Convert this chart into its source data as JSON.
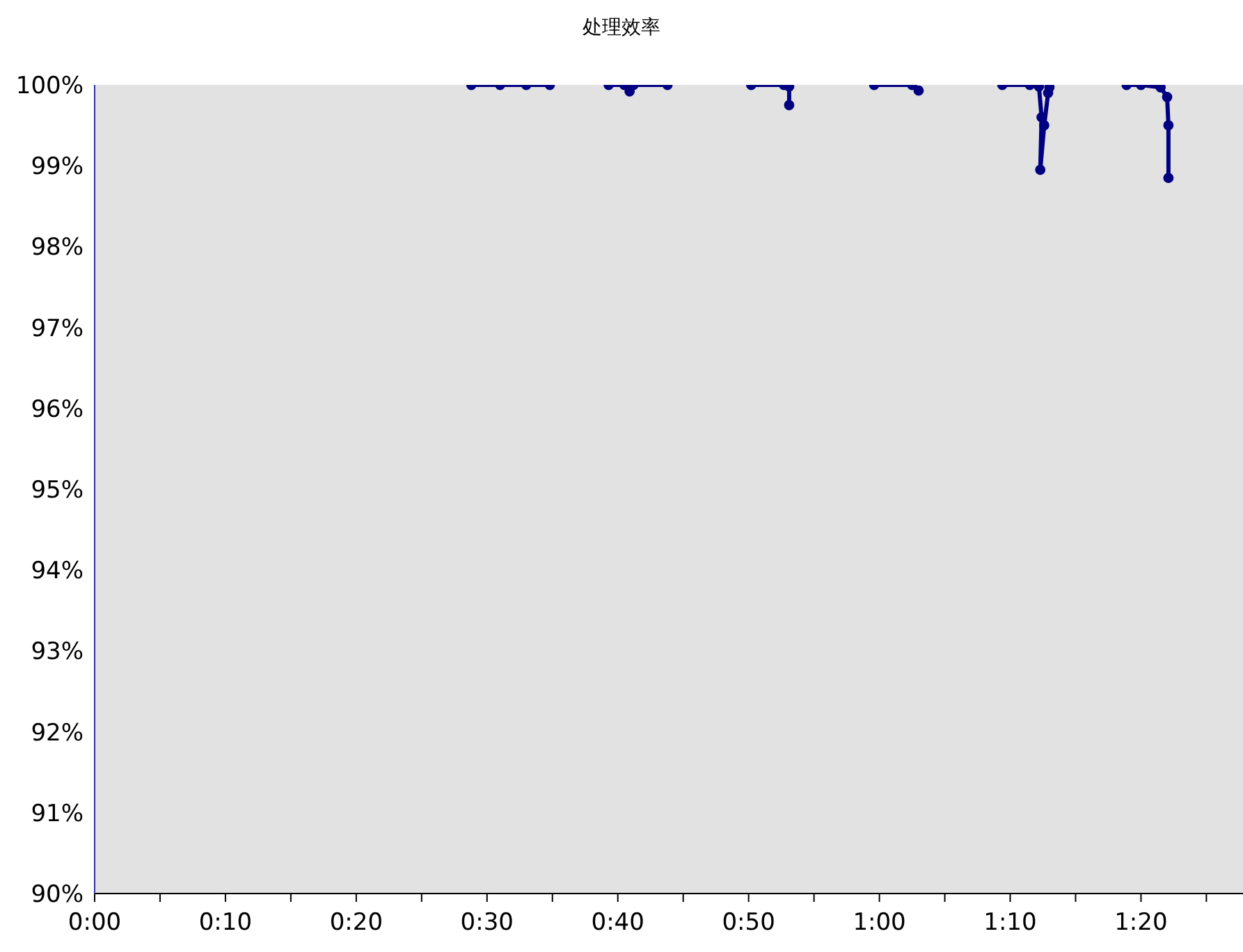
{
  "chart_data": {
    "type": "line",
    "title": "处理效率",
    "x": [
      28.8,
      31,
      33,
      34.8,
      37,
      39.3,
      40.5,
      40.9,
      41.2,
      43.8,
      47,
      50.2,
      52.7,
      53.1,
      53.1,
      56,
      59.6,
      62.5,
      63.0,
      66,
      69.4,
      71.5,
      72.2,
      72.4,
      72.3,
      72.6,
      72.9,
      73.0,
      76,
      78.9,
      80,
      81.5,
      82.0,
      82.1,
      82.1
    ],
    "series": [
      {
        "color": "#000080",
        "values": [
          100,
          100,
          100,
          100,
          null,
          100,
          100,
          99.92,
          100,
          100,
          null,
          100,
          100,
          99.98,
          99.75,
          null,
          100,
          100,
          99.93,
          null,
          100,
          100,
          99.98,
          99.6,
          98.95,
          99.5,
          99.9,
          99.97,
          null,
          100,
          100,
          99.97,
          99.85,
          99.5,
          98.85
        ]
      }
    ],
    "xlim": [
      0,
      87.8
    ],
    "xticks": [
      {
        "value": 0,
        "label": "0:00"
      },
      {
        "value": 5,
        "label": null
      },
      {
        "value": 10,
        "label": "0:10"
      },
      {
        "value": 15,
        "label": null
      },
      {
        "value": 20,
        "label": "0:20"
      },
      {
        "value": 25,
        "label": null
      },
      {
        "value": 30,
        "label": "0:30"
      },
      {
        "value": 35,
        "label": null
      },
      {
        "value": 40,
        "label": "0:40"
      },
      {
        "value": 45,
        "label": null
      },
      {
        "value": 50,
        "label": "0:50"
      },
      {
        "value": 55,
        "label": null
      },
      {
        "value": 60,
        "label": "1:00"
      },
      {
        "value": 65,
        "label": null
      },
      {
        "value": 70,
        "label": "1:10"
      },
      {
        "value": 75,
        "label": null
      },
      {
        "value": 80,
        "label": "1:20"
      },
      {
        "value": 85,
        "label": null
      }
    ],
    "ylim": [
      90,
      100
    ],
    "yticks": [
      {
        "value": 90,
        "label": "90%"
      },
      {
        "value": 91,
        "label": "91%"
      },
      {
        "value": 92,
        "label": "92%"
      },
      {
        "value": 93,
        "label": "93%"
      },
      {
        "value": 94,
        "label": "94%"
      },
      {
        "value": 95,
        "label": "95%"
      },
      {
        "value": 96,
        "label": "96%"
      },
      {
        "value": 97,
        "label": "97%"
      },
      {
        "value": 98,
        "label": "98%"
      },
      {
        "value": 99,
        "label": "99%"
      },
      {
        "value": 100,
        "label": "100%"
      }
    ],
    "marker": "circle",
    "line_style": "solid",
    "grid": false,
    "legend": false
  }
}
